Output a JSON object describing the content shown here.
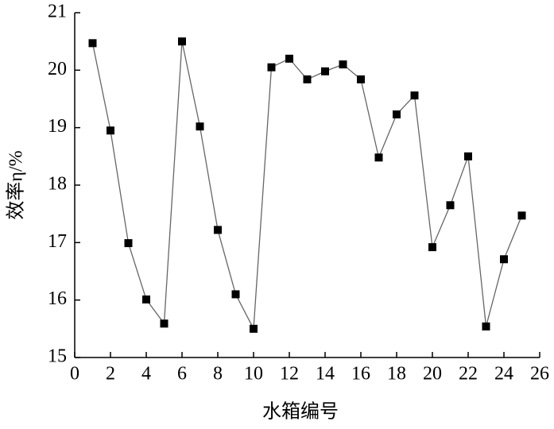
{
  "chart_data": {
    "type": "line",
    "xlabel": "水箱编号",
    "ylabel": "效率η/%",
    "x": [
      1,
      2,
      3,
      4,
      5,
      6,
      7,
      8,
      9,
      10,
      11,
      12,
      13,
      14,
      15,
      16,
      17,
      18,
      19,
      20,
      21,
      22,
      23,
      24,
      25
    ],
    "series": [
      {
        "color": "#000000",
        "line_color": "#666666",
        "values": [
          20.47,
          18.95,
          16.99,
          16.01,
          15.59,
          20.5,
          19.02,
          17.22,
          16.1,
          15.5,
          20.05,
          20.2,
          19.84,
          19.98,
          20.1,
          19.84,
          18.48,
          19.23,
          19.56,
          16.92,
          17.65,
          18.5,
          15.54,
          16.71,
          17.47
        ]
      }
    ],
    "xlim": [
      0,
      26
    ],
    "xticks": [
      0,
      2,
      4,
      6,
      8,
      10,
      12,
      14,
      16,
      18,
      20,
      22,
      24,
      26
    ],
    "ylim": [
      15,
      21
    ],
    "yticks": [
      15,
      16,
      17,
      18,
      19,
      20,
      21
    ]
  }
}
